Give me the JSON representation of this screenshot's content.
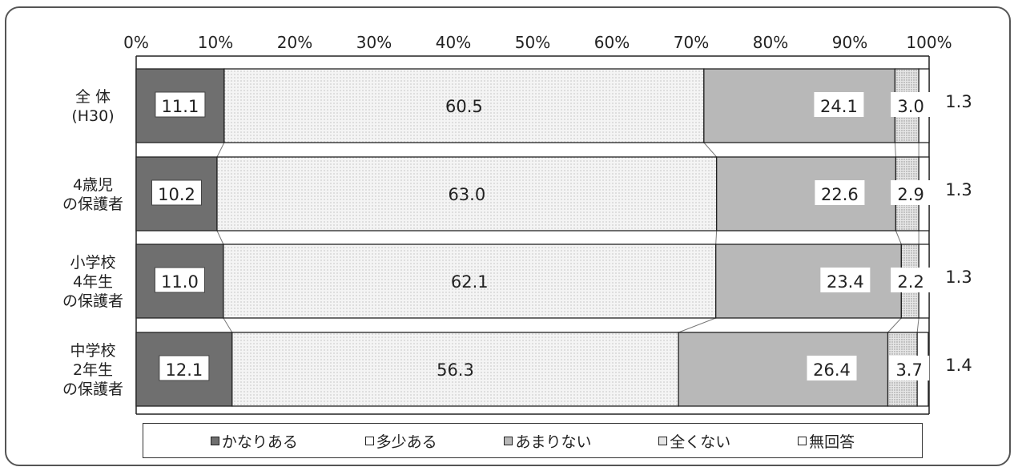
{
  "chart_data": {
    "type": "bar",
    "orientation": "horizontal",
    "stacked": true,
    "percent_stacked": true,
    "xlim": [
      0,
      100
    ],
    "x_tick_labels": [
      "0%",
      "10%",
      "20%",
      "30%",
      "40%",
      "50%",
      "60%",
      "70%",
      "80%",
      "90%",
      "100%"
    ],
    "categories": [
      {
        "lines": [
          "全 体",
          "(H30)"
        ]
      },
      {
        "lines": [
          "4歳児",
          "の保護者"
        ]
      },
      {
        "lines": [
          "小学校",
          "4年生",
          "の保護者"
        ]
      },
      {
        "lines": [
          "中学校",
          "2年生",
          "の保護者"
        ]
      }
    ],
    "series": [
      {
        "name": "かなりある",
        "color": "#6f6f6f",
        "values": [
          11.1,
          10.2,
          11.0,
          12.1
        ],
        "labels": [
          "11.1",
          "10.2",
          "11.0",
          "12.1"
        ]
      },
      {
        "name": "多少ある",
        "color": "#f1f1f1",
        "values": [
          60.5,
          63.0,
          62.1,
          56.3
        ],
        "labels": [
          "60.5",
          "63.0",
          "62.1",
          "56.3"
        ]
      },
      {
        "name": "あまりない",
        "color": "#b8b8b8",
        "values": [
          24.1,
          22.6,
          23.4,
          26.4
        ],
        "labels": [
          "24.1",
          "22.6",
          "23.4",
          "26.4"
        ]
      },
      {
        "name": "全くない",
        "color": "#d9d9d9",
        "values": [
          3.0,
          2.9,
          2.2,
          3.7
        ],
        "labels": [
          "3.0",
          "2.9",
          "2.2",
          "3.7"
        ]
      },
      {
        "name": "無回答",
        "color": "#ffffff",
        "values": [
          1.3,
          1.3,
          1.3,
          1.4
        ],
        "labels": [
          "1.3",
          "1.3",
          "1.3",
          "1.4"
        ]
      }
    ],
    "legend": {
      "placement": "bottom"
    },
    "grid": false
  }
}
